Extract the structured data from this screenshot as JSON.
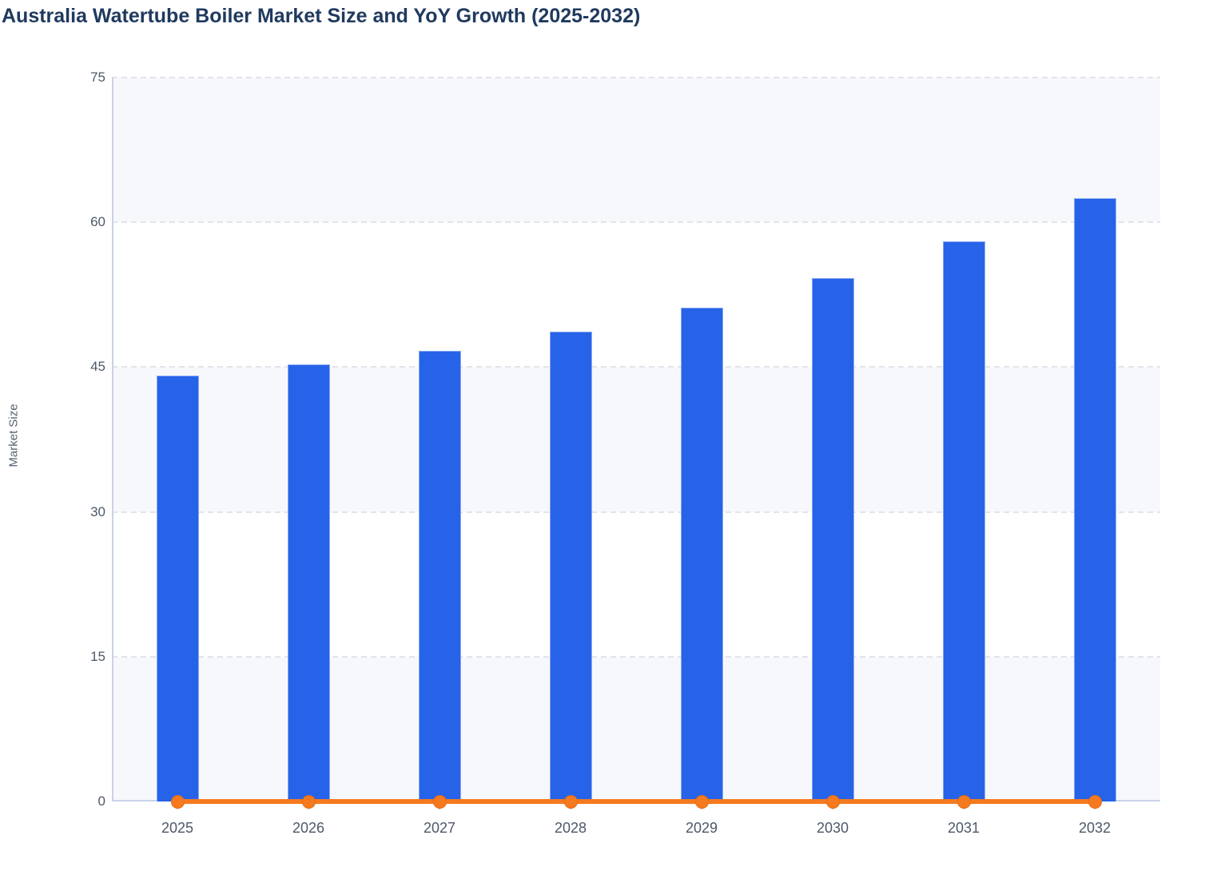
{
  "chart_data": {
    "type": "bar",
    "title": "Australia Watertube Boiler Market Size and YoY Growth (2025-2032)",
    "xlabel": "",
    "ylabel": "Market Size",
    "categories": [
      "2025",
      "2026",
      "2027",
      "2028",
      "2029",
      "2030",
      "2031",
      "2032"
    ],
    "series": [
      {
        "name": "Market Size",
        "type": "bar",
        "values": [
          44.1,
          45.3,
          46.7,
          48.7,
          51.2,
          54.2,
          58.0,
          62.5
        ]
      },
      {
        "name": "YoY Growth",
        "type": "line",
        "values": [
          0,
          0,
          0,
          0,
          0,
          0,
          0,
          0
        ],
        "note": "line renders flat on the zero baseline with a round marker at each year"
      }
    ],
    "ylim": [
      0,
      75
    ],
    "yticks": [
      0,
      15,
      30,
      45,
      60,
      75
    ],
    "grid": "horizontal dashed gridlines, alternating shaded horizontal bands",
    "legend": "none"
  },
  "colors": {
    "title_text": "#203a5e",
    "axis_line": "#c9d2e8",
    "gridline": "#e3e4e9",
    "band_fill": "#f7f8fb",
    "tick_label": "#4d5968",
    "bar_fill": "#2763e8",
    "bar_border": "#8aa9f2",
    "yoy_line": "#f57a1f",
    "yoy_marker_border": "#ea6c12"
  }
}
